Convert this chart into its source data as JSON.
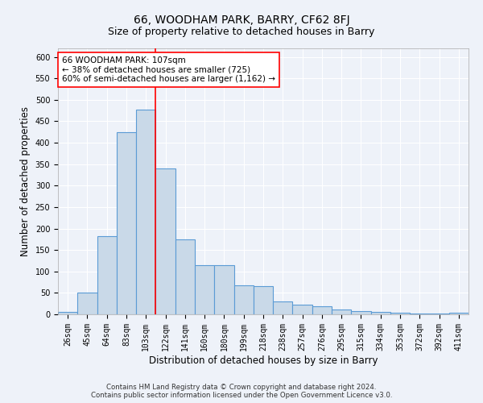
{
  "title": "66, WOODHAM PARK, BARRY, CF62 8FJ",
  "subtitle": "Size of property relative to detached houses in Barry",
  "xlabel": "Distribution of detached houses by size in Barry",
  "ylabel": "Number of detached properties",
  "categories": [
    "26sqm",
    "45sqm",
    "64sqm",
    "83sqm",
    "103sqm",
    "122sqm",
    "141sqm",
    "160sqm",
    "180sqm",
    "199sqm",
    "218sqm",
    "238sqm",
    "257sqm",
    "276sqm",
    "295sqm",
    "315sqm",
    "334sqm",
    "353sqm",
    "372sqm",
    "392sqm",
    "411sqm"
  ],
  "values": [
    5,
    50,
    182,
    425,
    478,
    340,
    175,
    115,
    115,
    68,
    65,
    30,
    22,
    18,
    12,
    8,
    5,
    3,
    2,
    1,
    3
  ],
  "bar_color": "#c9d9e8",
  "bar_edge_color": "#5b9bd5",
  "vline_x": 4.5,
  "vline_color": "red",
  "annotation_text": "66 WOODHAM PARK: 107sqm\n← 38% of detached houses are smaller (725)\n60% of semi-detached houses are larger (1,162) →",
  "annotation_box_color": "white",
  "annotation_box_edge": "red",
  "ylim": [
    0,
    620
  ],
  "yticks": [
    0,
    50,
    100,
    150,
    200,
    250,
    300,
    350,
    400,
    450,
    500,
    550,
    600
  ],
  "footer": "Contains HM Land Registry data © Crown copyright and database right 2024.\nContains public sector information licensed under the Open Government Licence v3.0.",
  "title_fontsize": 10,
  "subtitle_fontsize": 9,
  "label_fontsize": 8.5,
  "tick_fontsize": 7,
  "annot_fontsize": 7.5,
  "bg_color": "#eef2f9",
  "grid_color": "#ffffff"
}
